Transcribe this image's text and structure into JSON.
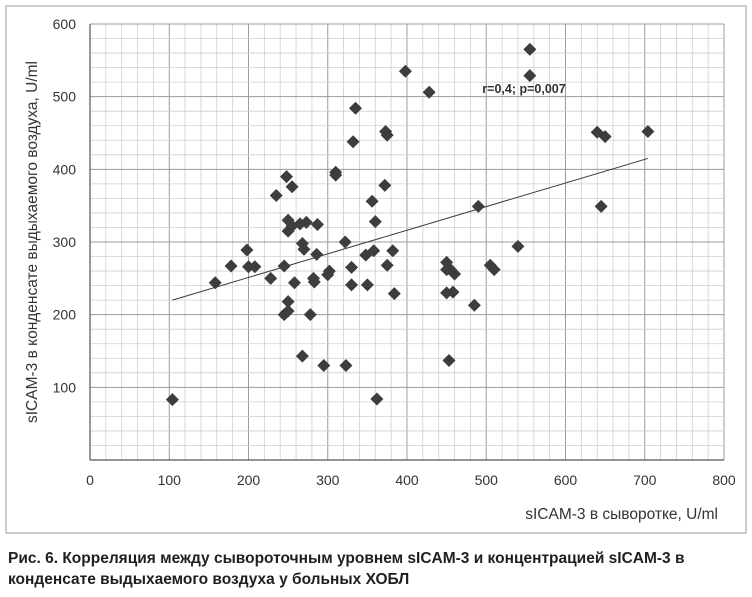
{
  "chart_data": {
    "type": "scatter",
    "title": "",
    "xlabel": "sICAM-3 в сыворотке, U/ml",
    "ylabel": "sICAM-3 в конденсате выдыхаемого воздуха, U/ml",
    "xlim": [
      0,
      800
    ],
    "ylim": [
      0,
      600
    ],
    "xticks": [
      0,
      100,
      200,
      300,
      400,
      500,
      600,
      700,
      800
    ],
    "yticks": [
      100,
      200,
      300,
      400,
      500,
      600
    ],
    "grid": true,
    "legend": "none",
    "marker": "diamond",
    "marker_color": "#3d3d3d",
    "annotation": "r=0,4; p=0,007",
    "annotation_pos": [
      495,
      505
    ],
    "trendline": {
      "x": [
        104,
        704
      ],
      "y": [
        220,
        415
      ]
    },
    "points": [
      [
        104,
        83
      ],
      [
        158,
        244
      ],
      [
        178,
        267
      ],
      [
        198,
        289
      ],
      [
        200,
        266
      ],
      [
        208,
        266
      ],
      [
        228,
        250
      ],
      [
        235,
        364
      ],
      [
        245,
        267
      ],
      [
        245,
        200
      ],
      [
        250,
        205
      ],
      [
        250,
        218
      ],
      [
        248,
        390
      ],
      [
        255,
        376
      ],
      [
        250,
        330
      ],
      [
        250,
        315
      ],
      [
        255,
        322
      ],
      [
        258,
        244
      ],
      [
        265,
        325
      ],
      [
        268,
        143
      ],
      [
        268,
        298
      ],
      [
        270,
        290
      ],
      [
        273,
        327
      ],
      [
        278,
        200
      ],
      [
        282,
        250
      ],
      [
        283,
        245
      ],
      [
        286,
        283
      ],
      [
        287,
        324
      ],
      [
        295,
        130
      ],
      [
        300,
        255
      ],
      [
        302,
        260
      ],
      [
        310,
        396
      ],
      [
        310,
        392
      ],
      [
        322,
        300
      ],
      [
        323,
        130
      ],
      [
        330,
        265
      ],
      [
        330,
        241
      ],
      [
        332,
        438
      ],
      [
        335,
        484
      ],
      [
        348,
        282
      ],
      [
        350,
        241
      ],
      [
        356,
        356
      ],
      [
        358,
        288
      ],
      [
        360,
        328
      ],
      [
        362,
        84
      ],
      [
        372,
        378
      ],
      [
        373,
        452
      ],
      [
        375,
        447
      ],
      [
        375,
        268
      ],
      [
        382,
        288
      ],
      [
        384,
        229
      ],
      [
        398,
        535
      ],
      [
        428,
        506
      ],
      [
        450,
        272
      ],
      [
        450,
        262
      ],
      [
        450,
        230
      ],
      [
        453,
        137
      ],
      [
        455,
        262
      ],
      [
        458,
        231
      ],
      [
        460,
        256
      ],
      [
        485,
        213
      ],
      [
        490,
        349
      ],
      [
        505,
        268
      ],
      [
        510,
        262
      ],
      [
        540,
        294
      ],
      [
        555,
        565
      ],
      [
        555,
        529
      ],
      [
        640,
        451
      ],
      [
        645,
        349
      ],
      [
        650,
        445
      ],
      [
        704,
        452
      ]
    ]
  },
  "caption": "Рис. 6. Корреляция между сывороточным уровнем sICAM-3 и концентрацией sICAM-3 в конденсате выдыхаемого воздуха у больных ХОБЛ"
}
